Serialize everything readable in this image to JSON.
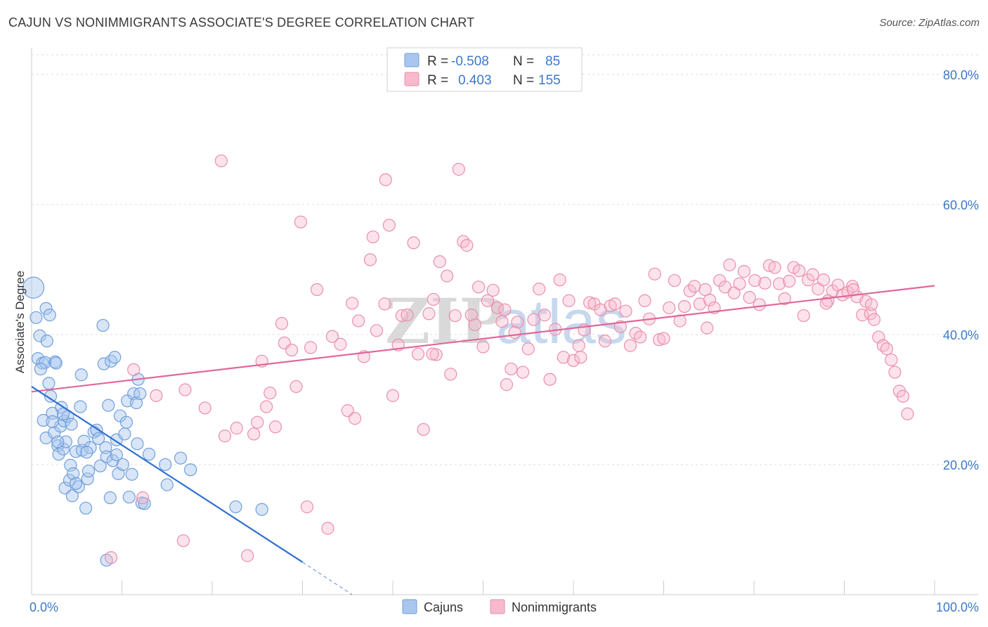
{
  "header": {
    "title": "CAJUN VS NONIMMIGRANTS ASSOCIATE'S DEGREE CORRELATION CHART",
    "source": "Source: ZipAtlas.com"
  },
  "watermark": {
    "zip": "ZIP",
    "atlas": "atlas"
  },
  "legend": {
    "rows": [
      {
        "r_label": "R =",
        "r_value": "-0.508",
        "n_label": "N =",
        "n_value": "85",
        "color": "#a9c6ee",
        "stroke": "#6f9fdb"
      },
      {
        "r_label": "R =",
        "r_value": "0.403",
        "n_label": "N =",
        "n_value": "155",
        "color": "#f7b9cc",
        "stroke": "#ea8fab"
      }
    ]
  },
  "bottom_legend": {
    "items": [
      {
        "label": "Cajuns",
        "color": "#a9c6ee"
      },
      {
        "label": "Nonimmigrants",
        "color": "#f7b9cc"
      }
    ]
  },
  "chart_data": {
    "type": "scatter",
    "xlabel": "",
    "ylabel": "Associate's Degree",
    "xlim": [
      0,
      100
    ],
    "ylim": [
      0,
      83
    ],
    "x_tick_labels": [
      "0.0%",
      "100.0%"
    ],
    "y_ticks": [
      20,
      40,
      60,
      80
    ],
    "y_tick_labels": [
      "20.0%",
      "40.0%",
      "60.0%",
      "80.0%"
    ],
    "grid": true,
    "series": [
      {
        "name": "Cajuns",
        "color": "#6f9fdb",
        "trendline": {
          "x": [
            0,
            30
          ],
          "y": [
            32.0,
            5.0
          ],
          "dashed_extension_to": [
            35.5,
            0.0
          ]
        },
        "points": [
          [
            0.2,
            47.2
          ],
          [
            0.5,
            42.6
          ],
          [
            0.7,
            36.3
          ],
          [
            0.9,
            39.8
          ],
          [
            1.2,
            35.6
          ],
          [
            1.5,
            35.7
          ],
          [
            1.6,
            44.0
          ],
          [
            1.7,
            39.0
          ],
          [
            1.9,
            32.5
          ],
          [
            2.0,
            43.0
          ],
          [
            2.1,
            30.5
          ],
          [
            1.3,
            26.8
          ],
          [
            1.6,
            24.1
          ],
          [
            2.3,
            27.9
          ],
          [
            2.5,
            24.9
          ],
          [
            2.6,
            35.8
          ],
          [
            2.7,
            35.6
          ],
          [
            2.9,
            22.9
          ],
          [
            3.0,
            21.6
          ],
          [
            3.2,
            25.9
          ],
          [
            3.3,
            28.8
          ],
          [
            3.5,
            22.4
          ],
          [
            3.6,
            26.7
          ],
          [
            3.7,
            16.4
          ],
          [
            3.8,
            23.5
          ],
          [
            4.0,
            27.4
          ],
          [
            4.2,
            17.6
          ],
          [
            4.3,
            19.9
          ],
          [
            4.4,
            26.2
          ],
          [
            4.5,
            15.2
          ],
          [
            4.6,
            18.6
          ],
          [
            4.9,
            22.0
          ],
          [
            5.2,
            16.6
          ],
          [
            5.4,
            28.9
          ],
          [
            5.5,
            33.8
          ],
          [
            5.6,
            22.2
          ],
          [
            5.8,
            23.6
          ],
          [
            6.0,
            13.3
          ],
          [
            6.2,
            17.8
          ],
          [
            6.3,
            19.0
          ],
          [
            6.5,
            22.6
          ],
          [
            6.9,
            25.0
          ],
          [
            7.2,
            25.3
          ],
          [
            7.4,
            24.0
          ],
          [
            7.6,
            19.8
          ],
          [
            7.9,
            41.4
          ],
          [
            8.0,
            35.5
          ],
          [
            8.2,
            22.6
          ],
          [
            8.3,
            21.2
          ],
          [
            8.5,
            29.1
          ],
          [
            8.7,
            14.9
          ],
          [
            8.8,
            35.9
          ],
          [
            9.0,
            20.6
          ],
          [
            9.2,
            36.5
          ],
          [
            9.4,
            23.8
          ],
          [
            9.6,
            18.6
          ],
          [
            9.8,
            27.5
          ],
          [
            10.1,
            20.0
          ],
          [
            10.3,
            24.7
          ],
          [
            10.5,
            26.5
          ],
          [
            10.6,
            29.8
          ],
          [
            10.8,
            15.0
          ],
          [
            11.1,
            18.5
          ],
          [
            11.3,
            30.9
          ],
          [
            11.6,
            29.5
          ],
          [
            11.8,
            33.1
          ],
          [
            12.0,
            30.9
          ],
          [
            12.2,
            14.1
          ],
          [
            12.5,
            14.0
          ],
          [
            13.0,
            21.6
          ],
          [
            14.8,
            20.0
          ],
          [
            15.0,
            16.9
          ],
          [
            16.5,
            21.0
          ],
          [
            17.6,
            19.2
          ],
          [
            22.6,
            13.5
          ],
          [
            25.5,
            13.1
          ],
          [
            8.3,
            5.3
          ],
          [
            2.9,
            23.5
          ],
          [
            6.1,
            21.9
          ],
          [
            3.5,
            27.8
          ],
          [
            9.4,
            21.5
          ],
          [
            4.9,
            17.1
          ],
          [
            11.7,
            23.2
          ],
          [
            1.0,
            34.7
          ],
          [
            2.3,
            26.6
          ]
        ],
        "size_hints": {
          "large_index": 0
        }
      },
      {
        "name": "Nonimmigrants",
        "color": "#ea8fab",
        "trendline": {
          "x": [
            0,
            100
          ],
          "y": [
            31.2,
            47.5
          ]
        },
        "points": [
          [
            11.3,
            34.6
          ],
          [
            12.3,
            14.9
          ],
          [
            16.8,
            8.3
          ],
          [
            19.2,
            28.7
          ],
          [
            21.0,
            66.7
          ],
          [
            21.4,
            24.4
          ],
          [
            22.7,
            25.6
          ],
          [
            23.9,
            6.0
          ],
          [
            24.6,
            24.7
          ],
          [
            25.0,
            26.5
          ],
          [
            25.5,
            35.9
          ],
          [
            26.0,
            28.9
          ],
          [
            26.4,
            31.0
          ],
          [
            27.0,
            25.8
          ],
          [
            27.7,
            41.7
          ],
          [
            28.0,
            38.7
          ],
          [
            28.8,
            37.6
          ],
          [
            29.3,
            32.0
          ],
          [
            29.8,
            57.3
          ],
          [
            30.5,
            13.5
          ],
          [
            30.9,
            38.0
          ],
          [
            31.6,
            46.9
          ],
          [
            32.8,
            10.2
          ],
          [
            33.3,
            39.7
          ],
          [
            34.2,
            38.5
          ],
          [
            35.0,
            28.3
          ],
          [
            35.5,
            44.8
          ],
          [
            35.8,
            27.1
          ],
          [
            36.2,
            42.1
          ],
          [
            36.8,
            36.6
          ],
          [
            37.5,
            51.5
          ],
          [
            37.8,
            55.0
          ],
          [
            38.2,
            40.6
          ],
          [
            39.1,
            44.7
          ],
          [
            39.6,
            56.8
          ],
          [
            40.0,
            30.6
          ],
          [
            40.6,
            38.4
          ],
          [
            41.0,
            42.9
          ],
          [
            41.6,
            43.0
          ],
          [
            42.3,
            54.1
          ],
          [
            42.8,
            37.0
          ],
          [
            43.4,
            25.4
          ],
          [
            44.0,
            43.2
          ],
          [
            44.5,
            45.4
          ],
          [
            44.8,
            36.9
          ],
          [
            45.2,
            51.2
          ],
          [
            46.0,
            49.0
          ],
          [
            46.4,
            33.9
          ],
          [
            46.9,
            42.9
          ],
          [
            47.3,
            65.4
          ],
          [
            47.8,
            54.3
          ],
          [
            48.2,
            53.7
          ],
          [
            48.7,
            43.0
          ],
          [
            49.1,
            41.5
          ],
          [
            49.5,
            47.3
          ],
          [
            50.0,
            38.1
          ],
          [
            50.5,
            45.2
          ],
          [
            51.1,
            46.8
          ],
          [
            51.6,
            44.1
          ],
          [
            52.1,
            42.0
          ],
          [
            52.6,
            32.3
          ],
          [
            53.1,
            34.7
          ],
          [
            53.8,
            41.9
          ],
          [
            54.4,
            34.2
          ],
          [
            55.0,
            37.8
          ],
          [
            55.6,
            42.3
          ],
          [
            56.2,
            47.0
          ],
          [
            56.8,
            43.0
          ],
          [
            57.4,
            33.1
          ],
          [
            58.0,
            40.8
          ],
          [
            58.5,
            48.4
          ],
          [
            58.9,
            36.5
          ],
          [
            59.5,
            45.2
          ],
          [
            60.0,
            36.0
          ],
          [
            60.6,
            38.3
          ],
          [
            61.2,
            40.7
          ],
          [
            61.8,
            44.9
          ],
          [
            62.3,
            44.7
          ],
          [
            63.0,
            43.8
          ],
          [
            63.5,
            39.0
          ],
          [
            64.1,
            44.4
          ],
          [
            64.6,
            44.7
          ],
          [
            65.2,
            41.2
          ],
          [
            65.8,
            43.6
          ],
          [
            66.3,
            38.3
          ],
          [
            66.9,
            40.2
          ],
          [
            67.4,
            39.6
          ],
          [
            67.9,
            45.2
          ],
          [
            68.4,
            42.4
          ],
          [
            69.0,
            49.3
          ],
          [
            69.5,
            39.2
          ],
          [
            70.0,
            39.4
          ],
          [
            70.6,
            44.1
          ],
          [
            71.2,
            48.3
          ],
          [
            71.8,
            42.1
          ],
          [
            72.3,
            44.3
          ],
          [
            72.9,
            46.7
          ],
          [
            73.4,
            47.4
          ],
          [
            74.0,
            44.7
          ],
          [
            74.6,
            46.9
          ],
          [
            75.1,
            45.3
          ],
          [
            75.6,
            44.1
          ],
          [
            76.2,
            48.3
          ],
          [
            76.8,
            47.3
          ],
          [
            77.3,
            50.7
          ],
          [
            77.8,
            46.4
          ],
          [
            78.4,
            47.8
          ],
          [
            78.9,
            49.7
          ],
          [
            79.5,
            45.7
          ],
          [
            80.1,
            48.3
          ],
          [
            80.6,
            44.6
          ],
          [
            81.2,
            47.9
          ],
          [
            81.7,
            50.6
          ],
          [
            82.3,
            50.3
          ],
          [
            82.8,
            47.8
          ],
          [
            83.4,
            45.5
          ],
          [
            83.9,
            48.2
          ],
          [
            84.4,
            50.3
          ],
          [
            85.0,
            49.8
          ],
          [
            85.5,
            42.9
          ],
          [
            86.0,
            48.4
          ],
          [
            86.5,
            49.2
          ],
          [
            87.1,
            47.0
          ],
          [
            87.7,
            48.4
          ],
          [
            88.2,
            45.2
          ],
          [
            88.7,
            46.7
          ],
          [
            89.3,
            47.6
          ],
          [
            89.8,
            46.1
          ],
          [
            90.4,
            46.5
          ],
          [
            90.9,
            47.4
          ],
          [
            91.4,
            45.8
          ],
          [
            92.0,
            43.0
          ],
          [
            92.4,
            45.1
          ],
          [
            92.9,
            43.2
          ],
          [
            93.3,
            42.3
          ],
          [
            93.8,
            39.6
          ],
          [
            94.3,
            38.3
          ],
          [
            94.7,
            37.8
          ],
          [
            95.2,
            36.1
          ],
          [
            95.6,
            34.2
          ],
          [
            96.1,
            31.3
          ],
          [
            96.5,
            30.5
          ],
          [
            97.0,
            27.8
          ],
          [
            13.8,
            30.6
          ],
          [
            17.0,
            31.5
          ],
          [
            39.2,
            63.8
          ],
          [
            44.4,
            37.0
          ],
          [
            53.5,
            40.3
          ],
          [
            60.8,
            36.5
          ],
          [
            74.8,
            41.0
          ],
          [
            88.0,
            44.8
          ],
          [
            91.0,
            46.9
          ],
          [
            93.0,
            44.6
          ],
          [
            52.4,
            43.8
          ],
          [
            8.8,
            5.7
          ]
        ]
      }
    ]
  }
}
